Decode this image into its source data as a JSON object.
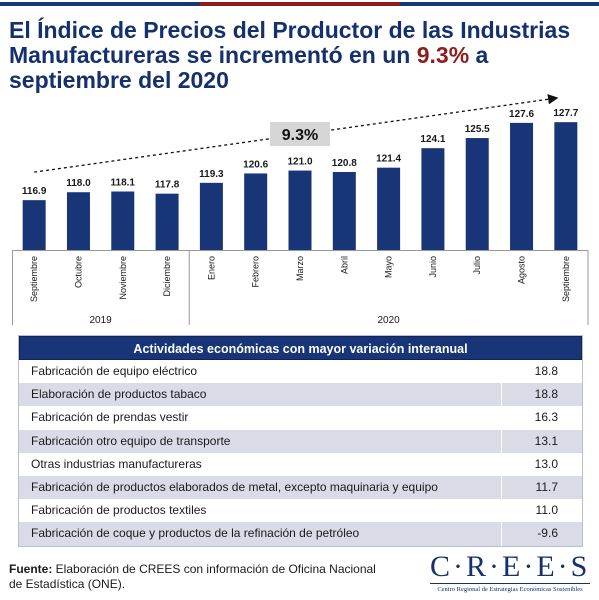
{
  "title": {
    "part1": "El Índice de Precios del Productor de las Industrias Manufactureras se incrementó en un ",
    "highlight": "9.3%",
    "part2": " a septiembre del 2020"
  },
  "chart_data": {
    "type": "bar",
    "categories": [
      "Septiembre",
      "Octubre",
      "Noviembre",
      "Diciembre",
      "Enero",
      "Febrero",
      "Marzo",
      "Abril",
      "Mayo",
      "Junio",
      "Julio",
      "Agosto",
      "Septiembre"
    ],
    "values": [
      116.9,
      118.0,
      118.1,
      117.8,
      119.3,
      120.6,
      121.0,
      120.8,
      121.4,
      124.1,
      125.5,
      127.6,
      127.7
    ],
    "value_labels": [
      "116.9",
      "118.0",
      "118.1",
      "117.8",
      "119.3",
      "120.6",
      "121.0",
      "120.8",
      "121.4",
      "124.1",
      "125.5",
      "127.6",
      "127.7"
    ],
    "groups": [
      {
        "label": "2019",
        "start": 0,
        "end": 3
      },
      {
        "label": "2020",
        "start": 4,
        "end": 12
      }
    ],
    "ylim": [
      110,
      128
    ],
    "annotation": "9.3%",
    "bar_color": "#173577",
    "annotation_box_color": "#d6d6d6"
  },
  "table": {
    "header": "Actividades económicas con mayor variación interanual",
    "rows": [
      {
        "name": "Fabricación de equipo eléctrico",
        "value": "18.8"
      },
      {
        "name": "Elaboración de productos tabaco",
        "value": "18.8"
      },
      {
        "name": "Fabricación de prendas vestir",
        "value": "16.3"
      },
      {
        "name": "Fabricación otro equipo de transporte",
        "value": "13.1"
      },
      {
        "name": "Otras industrias manufactureras",
        "value": "13.0"
      },
      {
        "name": "Fabricación de productos elaborados de metal, excepto maquinaria y equipo",
        "value": "11.7"
      },
      {
        "name": "Fabricación de productos textiles",
        "value": "11.0"
      },
      {
        "name": "Fabricación de coque y productos de la refinación de petróleo",
        "value": "-9.6"
      }
    ]
  },
  "source": {
    "label": "Fuente:",
    "text": " Elaboración de CREES con información de Oficina Nacional de Estadística (ONE)."
  },
  "logo": {
    "word": "C·R·E·E·S",
    "subtitle": "Centro Regional de Estrategias Económicas Sostenibles"
  }
}
